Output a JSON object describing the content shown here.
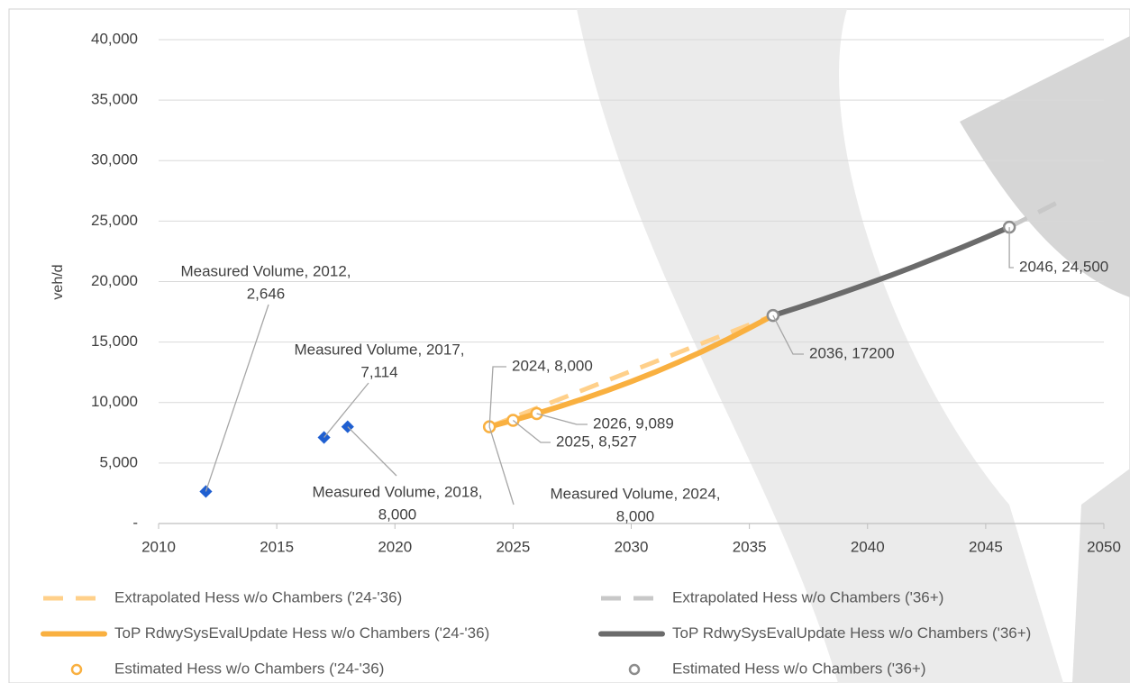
{
  "chart_data": {
    "type": "line",
    "y_label": "veh/d",
    "xlim": [
      2010,
      2050
    ],
    "xticks": [
      2010,
      2015,
      2020,
      2025,
      2030,
      2035,
      2040,
      2045,
      2050
    ],
    "ylim": [
      0,
      40000
    ],
    "yticks": [
      {
        "value": 0,
        "label": "-"
      },
      {
        "value": 5000,
        "label": "5,000"
      },
      {
        "value": 10000,
        "label": "10,000"
      },
      {
        "value": 15000,
        "label": "15,000"
      },
      {
        "value": 20000,
        "label": "20,000"
      },
      {
        "value": 25000,
        "label": "25,000"
      },
      {
        "value": 30000,
        "label": "30,000"
      },
      {
        "value": 35000,
        "label": "35,000"
      },
      {
        "value": 40000,
        "label": "40,000"
      }
    ],
    "grid": true,
    "legend": "bottom",
    "series": [
      {
        "name": "Measured Volume",
        "kind": "diamond",
        "color": "#1f5fd1",
        "in_legend": false,
        "x": [
          2012,
          2017,
          2018,
          2024
        ],
        "values": [
          2646,
          7114,
          8000,
          8000
        ],
        "value_labels": [
          [
            "Measured Volume, 2012,",
            "2,646"
          ],
          [
            "Measured Volume, 2017,",
            "7,114"
          ],
          [
            "Measured Volume, 2018,",
            "8,000"
          ],
          [
            "Measured Volume, 2024,",
            "8,000"
          ]
        ]
      },
      {
        "name": "Extrapolated Hess w/o Chambers ('24-'36)",
        "kind": "dashed",
        "color": "#ffd08a",
        "x": [
          2024,
          2036
        ],
        "values": [
          8000,
          17200
        ]
      },
      {
        "name": "Extrapolated Hess w/o Chambers ('36+)",
        "kind": "dashed",
        "color": "#c8c8c8",
        "x": [
          2046,
          2048
        ],
        "values": [
          24500,
          26500
        ]
      },
      {
        "name": "ToP RdwySysEvalUpdate Hess w/o Chambers ('24-'36)",
        "kind": "solid",
        "color": "#f9b040",
        "x": [
          2024,
          2025,
          2026,
          2027,
          2028,
          2029,
          2030,
          2031,
          2032,
          2033,
          2034,
          2035,
          2036
        ],
        "values": [
          8000,
          8527,
          9089,
          9690,
          10330,
          11010,
          11740,
          12510,
          13340,
          14220,
          15160,
          16160,
          17200
        ]
      },
      {
        "name": "ToP RdwySysEvalUpdate Hess w/o Chambers ('36+)",
        "kind": "solid",
        "color": "#6b6b6b",
        "x": [
          2036,
          2037,
          2038,
          2039,
          2040,
          2041,
          2042,
          2043,
          2044,
          2045,
          2046
        ],
        "values": [
          17200,
          17820,
          18460,
          19130,
          19820,
          20530,
          21270,
          22040,
          22830,
          23650,
          24500
        ]
      },
      {
        "name": "Estimated Hess w/o Chambers ('24-'36)",
        "kind": "circle",
        "color": "#f9b040",
        "x": [
          2024,
          2025,
          2026
        ],
        "values": [
          8000,
          8527,
          9089
        ],
        "value_labels": [
          "2024, 8,000",
          "2025, 8,527",
          "2026, 9,089"
        ]
      },
      {
        "name": "Estimated Hess w/o Chambers ('36+)",
        "kind": "circle",
        "color": "#8c8c8c",
        "x": [
          2036,
          2046
        ],
        "values": [
          17200,
          24500
        ],
        "value_labels": [
          "2036, 17200",
          "2046, 24,500"
        ]
      }
    ]
  }
}
